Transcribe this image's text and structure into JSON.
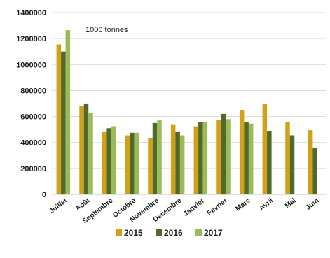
{
  "chart_data": {
    "type": "bar",
    "annotation": "1000 tonnes",
    "categories": [
      "Juillet",
      "Août",
      "Septembre",
      "Octobre",
      "Novembre",
      "Decembre",
      "Janvier",
      "Fevrier",
      "Mars",
      "Avril",
      "Mai",
      "Juin"
    ],
    "series": [
      {
        "name": "2015",
        "color": "#d4a017",
        "values": [
          1155000,
          680000,
          480000,
          455000,
          435000,
          535000,
          525000,
          575000,
          650000,
          695000,
          555000,
          495000
        ]
      },
      {
        "name": "2016",
        "color": "#4f6a2a",
        "values": [
          1100000,
          695000,
          510000,
          475000,
          550000,
          480000,
          560000,
          620000,
          560000,
          490000,
          455000,
          360000
        ]
      },
      {
        "name": "2017",
        "color": "#9bbb59",
        "values": [
          1265000,
          630000,
          525000,
          475000,
          570000,
          455000,
          555000,
          580000,
          545000,
          null,
          null,
          null
        ]
      }
    ],
    "yticks": [
      "0",
      "200000",
      "400000",
      "600000",
      "800000",
      "1000000",
      "1200000",
      "1400000"
    ],
    "ylim": [
      0,
      1400000
    ],
    "legend_position": "bottom",
    "grid": true
  }
}
